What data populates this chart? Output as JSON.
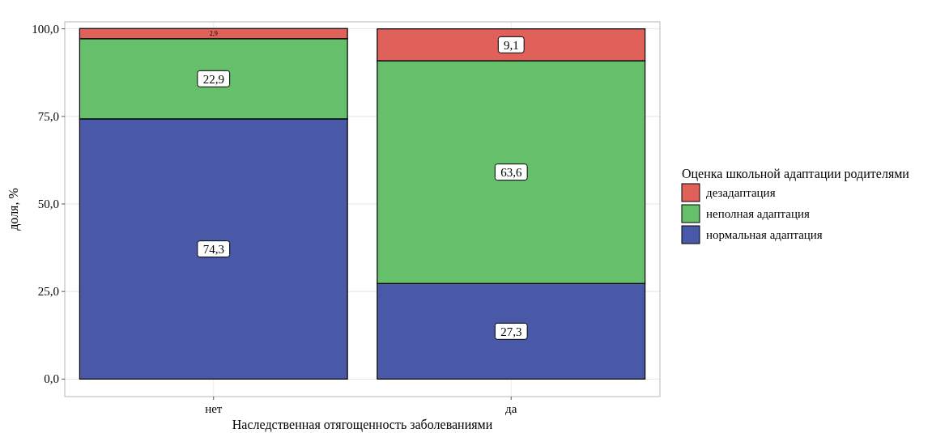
{
  "chart_data": {
    "type": "bar",
    "stacked": true,
    "xlabel": "Наследственная отягощенность заболеваниями",
    "ylabel": "доля, %",
    "legend_title": "Оценка школьной адаптации родителями",
    "categories": [
      "нет",
      "да"
    ],
    "series": [
      {
        "name": "нормальная адаптация",
        "color": "#4a58a8",
        "values": [
          74.3,
          27.3
        ],
        "value_labels": [
          "74,3",
          "27,3"
        ]
      },
      {
        "name": "неполная адаптация",
        "color": "#66bf6a",
        "values": [
          22.9,
          63.6
        ],
        "value_labels": [
          "22,9",
          "63,6"
        ]
      },
      {
        "name": "дезадаптация",
        "color": "#e0605a",
        "values": [
          2.9,
          9.1
        ],
        "value_labels": [
          "2,9",
          "9,1"
        ]
      }
    ],
    "ylim": [
      -5,
      102
    ],
    "yticks": [
      {
        "value": 0,
        "label": "0,0"
      },
      {
        "value": 25,
        "label": "25,0"
      },
      {
        "value": 50,
        "label": "50,0"
      },
      {
        "value": 75,
        "label": "75,0"
      },
      {
        "value": 100,
        "label": "100,0"
      }
    ],
    "grid": true,
    "legend": "right"
  }
}
